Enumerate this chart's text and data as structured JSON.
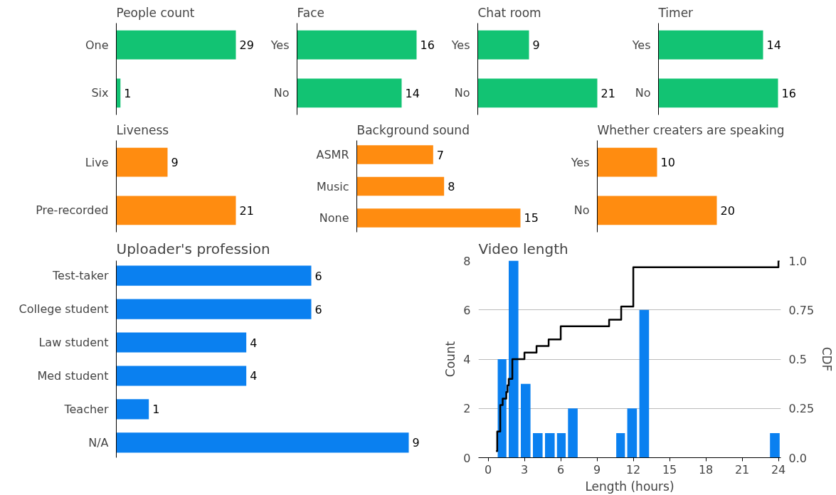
{
  "chart_data": [
    {
      "type": "bar",
      "orientation": "horizontal",
      "title": "People count",
      "categories": [
        "One",
        "Six"
      ],
      "values": [
        29,
        1
      ],
      "color": "#12c373",
      "data_labels": true,
      "tick_labels": "y"
    },
    {
      "type": "bar",
      "orientation": "horizontal",
      "title": "Face",
      "categories": [
        "Yes",
        "No"
      ],
      "values": [
        16,
        14
      ],
      "color": "#12c373",
      "data_labels": true,
      "tick_labels": "y"
    },
    {
      "type": "bar",
      "orientation": "horizontal",
      "title": "Chat room",
      "categories": [
        "Yes",
        "No"
      ],
      "values": [
        9,
        21
      ],
      "color": "#12c373",
      "data_labels": true,
      "tick_labels": "y"
    },
    {
      "type": "bar",
      "orientation": "horizontal",
      "title": "Timer",
      "categories": [
        "Yes",
        "No"
      ],
      "values": [
        14,
        16
      ],
      "color": "#12c373",
      "data_labels": true,
      "tick_labels": "y"
    },
    {
      "type": "bar",
      "orientation": "horizontal",
      "title": "Liveness",
      "categories": [
        "Live",
        "Pre-recorded"
      ],
      "values": [
        9,
        21
      ],
      "color": "#ff8c10",
      "data_labels": true,
      "tick_labels": "y"
    },
    {
      "type": "bar",
      "orientation": "horizontal",
      "title": "Background sound",
      "categories": [
        "ASMR",
        "Music",
        "None"
      ],
      "values": [
        7,
        8,
        15
      ],
      "color": "#ff8c10",
      "data_labels": true,
      "tick_labels": "y"
    },
    {
      "type": "bar",
      "orientation": "horizontal",
      "title": "Whether creaters are speaking",
      "categories": [
        "Yes",
        "No"
      ],
      "values": [
        10,
        20
      ],
      "color": "#ff8c10",
      "data_labels": true,
      "tick_labels": "y"
    },
    {
      "type": "bar",
      "orientation": "horizontal",
      "title": "Uploader's profession",
      "categories": [
        "Test-taker",
        "College student",
        "Law student",
        "Med student",
        "Teacher",
        "N/A"
      ],
      "values": [
        6,
        6,
        4,
        4,
        1,
        9
      ],
      "color": "#0a80f0",
      "data_labels": true,
      "tick_labels": "y"
    },
    {
      "type": "histogram",
      "title": "Video length",
      "xlabel": "Length (hours)",
      "ylabel": "Count",
      "y2label": "CDF",
      "bins": [
        0.7,
        1.6,
        2.6,
        3.6,
        4.6,
        5.6,
        6.5,
        7.5,
        10.5,
        11.4,
        12.4,
        13.4,
        23.2,
        24.2
      ],
      "values": [
        4,
        8,
        3,
        1,
        1,
        1,
        2,
        0,
        1,
        2,
        6,
        0,
        1
      ],
      "color": "#0a80f0",
      "series": [
        {
          "type": "step",
          "axis": "y2",
          "color": "#000000",
          "x": [
            0.65,
            0.75,
            1.0,
            1.2,
            1.5,
            1.6,
            1.7,
            2.0,
            3.0,
            4.0,
            5.0,
            6.0,
            10.0,
            11.0,
            12.0,
            24.0,
            24.1
          ],
          "values": [
            0.033,
            0.133,
            0.267,
            0.3,
            0.333,
            0.367,
            0.4,
            0.5,
            0.533,
            0.567,
            0.6,
            0.667,
            0.7,
            0.767,
            0.967,
            1.0,
            1.0
          ]
        }
      ],
      "xlim": [
        -0.8,
        24.2
      ],
      "xticks": [
        0,
        3,
        6,
        9,
        12,
        15,
        18,
        21,
        24
      ],
      "ylim": [
        0,
        8
      ],
      "yticks": [
        0,
        2,
        4,
        6,
        8
      ],
      "y2lim": [
        0,
        1
      ],
      "y2ticks": [
        {
          "value": 0,
          "label": "0.0"
        },
        0.25,
        0.5,
        0.75,
        {
          "value": 1,
          "label": "1.0"
        }
      ],
      "grid": "y"
    }
  ]
}
